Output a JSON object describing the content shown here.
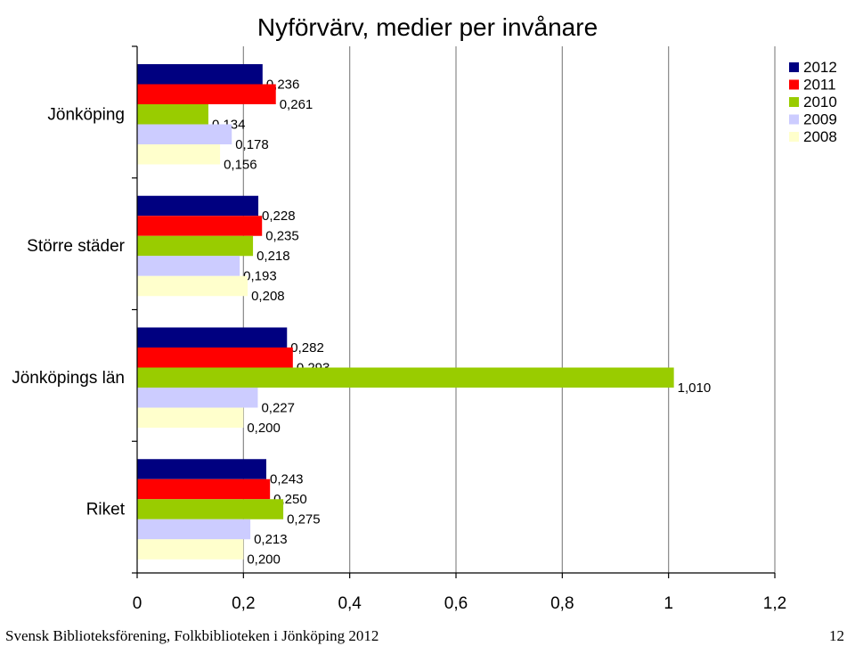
{
  "chart_data": {
    "type": "bar",
    "orientation": "horizontal",
    "title": "Nyförvärv, medier per invånare",
    "xlabel": "",
    "ylabel": "",
    "categories": [
      "Jönköping",
      "Större städer",
      "Jönköpings län",
      "Riket"
    ],
    "series": [
      {
        "name": "2012",
        "color": "#000080",
        "values": [
          0.236,
          0.228,
          0.282,
          0.243
        ],
        "labels": [
          "0,236",
          "0,228",
          "0,282",
          "0,243"
        ]
      },
      {
        "name": "2011",
        "color": "#ff0000",
        "values": [
          0.261,
          0.235,
          0.293,
          0.25
        ],
        "labels": [
          "0,261",
          "0,235",
          "0,293",
          "0,250"
        ]
      },
      {
        "name": "2010",
        "color": "#99cc00",
        "values": [
          0.134,
          0.218,
          1.01,
          0.275
        ],
        "labels": [
          "0,134",
          "0,218",
          "1,010",
          "0,275"
        ]
      },
      {
        "name": "2009",
        "color": "#ccccff",
        "values": [
          0.178,
          0.193,
          0.227,
          0.213
        ],
        "labels": [
          "0,178",
          "0,193",
          "0,227",
          "0,213"
        ]
      },
      {
        "name": "2008",
        "color": "#ffffcc",
        "values": [
          0.156,
          0.208,
          0.2,
          0.2
        ],
        "labels": [
          "0,156",
          "0,208",
          "0,200",
          "0,200"
        ]
      }
    ],
    "xlim": [
      0,
      1.2
    ],
    "x_ticks": [
      0,
      0.2,
      0.4,
      0.6,
      0.8,
      1.0,
      1.2
    ],
    "x_tick_labels": [
      "0",
      "0,2",
      "0,4",
      "0,6",
      "0,8",
      "1",
      "1,2"
    ],
    "grid": true,
    "legend_position": "top-right"
  },
  "footer": {
    "left": "Svensk Biblioteksförening, Folkbiblioteken i Jönköping 2012",
    "right": "12"
  }
}
